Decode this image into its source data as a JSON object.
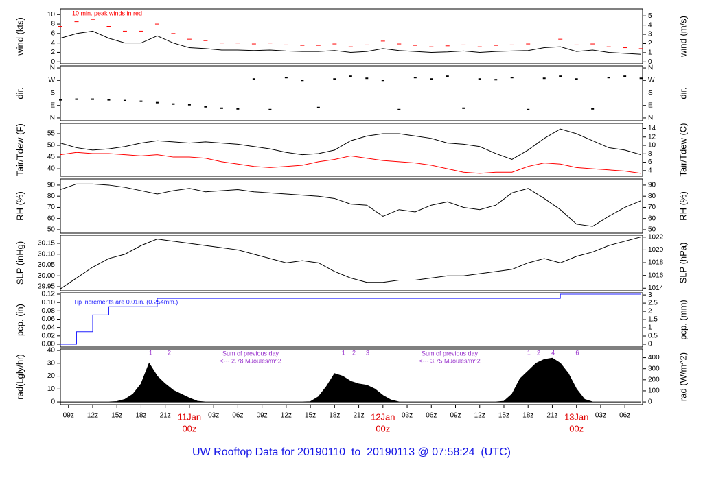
{
  "chart_data": [
    {
      "type": "line",
      "ylabel": "wind (kts)",
      "y2label": "wind (m/s)",
      "annotation": "10 min. peak winds in red",
      "x": [
        8,
        10,
        12,
        14,
        16,
        18,
        20,
        22,
        24,
        26,
        28,
        30,
        32,
        34,
        36,
        38,
        40,
        42,
        44,
        46,
        48,
        50,
        52,
        54,
        56,
        58,
        60,
        62,
        64,
        66,
        68,
        70,
        72,
        74,
        76,
        78,
        80
      ],
      "series": [
        {
          "color": "#000000",
          "values": [
            5,
            6,
            6.5,
            5,
            4,
            4,
            5.5,
            4,
            3,
            2.8,
            2.5,
            2.5,
            2.4,
            2.5,
            2.3,
            2.2,
            2.2,
            2.4,
            2,
            2.2,
            2.8,
            2.4,
            2.2,
            2,
            2.1,
            2.3,
            2,
            2.2,
            2.3,
            2.4,
            3,
            3.2,
            2.2,
            2.5,
            2,
            1.8,
            1.6
          ]
        },
        {
          "color": "#ff0000",
          "marker": "dash",
          "values": [
            7.5,
            8.5,
            9,
            7.5,
            6.5,
            6.5,
            8,
            6,
            4.8,
            4.5,
            4,
            4,
            3.8,
            4,
            3.6,
            3.5,
            3.5,
            3.8,
            3.2,
            3.6,
            4.4,
            3.8,
            3.5,
            3.2,
            3.4,
            3.6,
            3.2,
            3.5,
            3.6,
            3.8,
            4.6,
            4.8,
            3.6,
            3.8,
            3.2,
            3,
            2.8
          ]
        }
      ],
      "xlim": [
        8,
        80.2
      ],
      "ylim": [
        -0.4,
        11.2
      ],
      "yticks": [
        0,
        2,
        4,
        6,
        8,
        10
      ],
      "y2lim": [
        -0.2,
        5.76
      ],
      "y2ticks": [
        0,
        1,
        2,
        3,
        4,
        5
      ]
    },
    {
      "type": "scatter",
      "ylabel": "dir.",
      "y2label": "dir.",
      "x": [
        8,
        10,
        12,
        14,
        16,
        18,
        20,
        22,
        24,
        26,
        28,
        30,
        32,
        34,
        36,
        38,
        40,
        42,
        44,
        46,
        48,
        50,
        52,
        54,
        56,
        58,
        60,
        62,
        64,
        66,
        68,
        70,
        72,
        74,
        76,
        78,
        80
      ],
      "series": [
        {
          "color": "#000000",
          "values": [
            130,
            135,
            135,
            130,
            125,
            120,
            110,
            100,
            95,
            80,
            70,
            65,
            280,
            60,
            290,
            270,
            75,
            280,
            300,
            285,
            270,
            60,
            290,
            280,
            300,
            70,
            280,
            275,
            290,
            60,
            285,
            300,
            280,
            65,
            290,
            300,
            285
          ]
        }
      ],
      "xlim": [
        8,
        80.2
      ],
      "ylim": [
        -20,
        375
      ],
      "yticks": [
        {
          "value": 0,
          "label": "N"
        },
        {
          "value": 90,
          "label": "E"
        },
        {
          "value": 180,
          "label": "S"
        },
        {
          "value": 270,
          "label": "W"
        },
        {
          "value": 360,
          "label": "N"
        }
      ],
      "y2lim": [
        -20,
        375
      ],
      "y2ticks": [
        {
          "value": 0,
          "label": "N"
        },
        {
          "value": 90,
          "label": "E"
        },
        {
          "value": 180,
          "label": "S"
        },
        {
          "value": 270,
          "label": "W"
        },
        {
          "value": 360,
          "label": "N"
        }
      ]
    },
    {
      "type": "line",
      "ylabel": "Tair/Tdew (F)",
      "y2label": "Tair/Tdew (C)",
      "x": [
        8,
        10,
        12,
        14,
        16,
        18,
        20,
        22,
        24,
        26,
        28,
        30,
        32,
        34,
        36,
        38,
        40,
        42,
        44,
        46,
        48,
        50,
        52,
        54,
        56,
        58,
        60,
        62,
        64,
        66,
        68,
        70,
        72,
        74,
        76,
        78,
        80
      ],
      "series": [
        {
          "color": "#000000",
          "values": [
            51,
            49,
            48,
            48.5,
            49.5,
            51,
            52,
            51.5,
            51,
            51.5,
            51,
            50.5,
            49.5,
            48.5,
            47,
            46,
            46.5,
            48,
            52,
            54,
            55,
            55,
            54,
            53,
            51,
            50.5,
            49.5,
            46.5,
            44,
            48,
            53,
            57,
            55,
            52,
            49,
            48,
            46
          ]
        },
        {
          "color": "#ff0000",
          "values": [
            46,
            47,
            46.5,
            46.5,
            46,
            45.5,
            46,
            45,
            45,
            44.5,
            43,
            42,
            41,
            40.5,
            41,
            41.5,
            43,
            44,
            45.5,
            44.5,
            43.5,
            43,
            42.5,
            41.5,
            40,
            38.5,
            38,
            38.5,
            38.5,
            41,
            42.5,
            42,
            40.5,
            40,
            39.5,
            39,
            38
          ]
        }
      ],
      "xlim": [
        8,
        80.2
      ],
      "ylim": [
        36.8,
        59.4
      ],
      "yticks": [
        40,
        45,
        50,
        55
      ],
      "y2lim": [
        2.67,
        15.22
      ],
      "y2ticks": [
        4,
        6,
        8,
        10,
        12,
        14
      ]
    },
    {
      "type": "line",
      "ylabel": "RH (%)",
      "y2label": "RH (%)",
      "x": [
        8,
        10,
        12,
        14,
        16,
        18,
        20,
        22,
        24,
        26,
        28,
        30,
        32,
        34,
        36,
        38,
        40,
        42,
        44,
        46,
        48,
        50,
        52,
        54,
        56,
        58,
        60,
        62,
        64,
        66,
        68,
        70,
        72,
        74,
        76,
        78,
        80
      ],
      "series": [
        {
          "color": "#000000",
          "values": [
            86,
            91,
            91,
            90,
            88,
            85,
            82,
            85,
            87,
            84,
            85,
            86,
            84,
            83,
            82,
            81,
            80,
            78,
            73,
            72,
            62,
            68,
            66,
            72,
            75,
            70,
            68,
            72,
            83,
            87,
            78,
            68,
            55,
            53,
            62,
            70,
            76
          ]
        }
      ],
      "xlim": [
        8,
        80.2
      ],
      "ylim": [
        46.9,
        95.5
      ],
      "yticks": [
        50,
        60,
        70,
        80,
        90
      ],
      "y2lim": [
        46.9,
        95.5
      ],
      "y2ticks": [
        50,
        60,
        70,
        80,
        90
      ]
    },
    {
      "type": "line",
      "ylabel": "SLP (inHg)",
      "y2label": "SLP (hPa)",
      "x": [
        8,
        10,
        12,
        14,
        16,
        18,
        20,
        22,
        24,
        26,
        28,
        30,
        32,
        34,
        36,
        38,
        40,
        42,
        44,
        46,
        48,
        50,
        52,
        54,
        56,
        58,
        60,
        62,
        64,
        66,
        68,
        70,
        72,
        74,
        76,
        78,
        80
      ],
      "series": [
        {
          "color": "#000000",
          "values": [
            29.94,
            29.99,
            30.04,
            30.08,
            30.1,
            30.14,
            30.17,
            30.16,
            30.15,
            30.14,
            30.13,
            30.12,
            30.1,
            30.08,
            30.06,
            30.07,
            30.06,
            30.02,
            29.99,
            29.97,
            29.97,
            29.98,
            29.98,
            29.99,
            30,
            30,
            30.01,
            30.02,
            30.03,
            30.06,
            30.08,
            30.06,
            30.09,
            30.11,
            30.14,
            30.16,
            30.18
          ]
        }
      ],
      "xlim": [
        8,
        80.2
      ],
      "ylim": [
        29.931,
        30.188
      ],
      "yticks": [
        29.95,
        {
          "value": 30,
          "label": "30.00"
        },
        30.05,
        {
          "value": 30.1,
          "label": "30.10"
        },
        30.15
      ],
      "y2lim": [
        1013.6,
        1022.3
      ],
      "y2ticks": [
        1014,
        1016,
        1018,
        1020,
        1022
      ]
    },
    {
      "type": "step",
      "ylabel": "pcp. (in)",
      "y2label": "pcp. (mm)",
      "annotation": "Tip increments are 0.01in. (0.254mm.)",
      "x": [
        8,
        10,
        12,
        14,
        16,
        18,
        20,
        22,
        24,
        26,
        28,
        30,
        32,
        34,
        36,
        38,
        40,
        42,
        44,
        46,
        48,
        50,
        52,
        54,
        56,
        58,
        60,
        62,
        64,
        66,
        68,
        70,
        72,
        74,
        76,
        78,
        80
      ],
      "series": [
        {
          "color": "#2020ff",
          "values": [
            0,
            0.03,
            0.07,
            0.09,
            0.09,
            0.09,
            0.11,
            0.11,
            0.11,
            0.11,
            0.11,
            0.11,
            0.11,
            0.11,
            0.11,
            0.11,
            0.11,
            0.11,
            0.11,
            0.11,
            0.11,
            0.11,
            0.11,
            0.11,
            0.11,
            0.11,
            0.11,
            0.11,
            0.11,
            0.11,
            0.11,
            0.12,
            0.12,
            0.12,
            0.12,
            0.12,
            0.12
          ]
        }
      ],
      "xlim": [
        8,
        80.2
      ],
      "ylim": [
        -0.0066,
        0.1233
      ],
      "yticks": [
        {
          "value": 0,
          "label": "0.00"
        },
        0.02,
        0.04,
        0.06,
        0.08,
        {
          "value": 0.1,
          "label": "0.10"
        },
        0.12
      ],
      "y2lim": [
        -0.167,
        3.13
      ],
      "y2ticks": [
        0,
        0.5,
        1,
        1.5,
        2,
        2.5,
        3
      ]
    },
    {
      "type": "area",
      "ylabel": "rad(Lgly/hr)",
      "y2label": "rad (W/m^2)",
      "notes": [
        "Sum of previous day",
        "<--- 2.78 MJoules/m^2",
        "Sum of previous day",
        "<--- 3.75 MJoules/m^2"
      ],
      "markers": [
        {
          "x": 19.2,
          "label": "1"
        },
        {
          "x": 21.5,
          "label": "2"
        },
        {
          "x": 43.1,
          "label": "1"
        },
        {
          "x": 44.4,
          "label": "2"
        },
        {
          "x": 46.1,
          "label": "3"
        },
        {
          "x": 66.1,
          "label": "1"
        },
        {
          "x": 67.3,
          "label": "2"
        },
        {
          "x": 69.1,
          "label": "4"
        },
        {
          "x": 72.1,
          "label": "6"
        }
      ],
      "x": [
        8,
        9,
        10,
        11,
        12,
        13,
        14,
        15,
        16,
        17,
        18,
        19,
        20,
        21,
        22,
        23,
        24,
        25,
        26,
        27,
        28,
        29,
        30,
        31,
        32,
        33,
        34,
        35,
        36,
        37,
        38,
        39,
        40,
        41,
        42,
        43,
        44,
        45,
        46,
        47,
        48,
        49,
        50,
        51,
        52,
        53,
        54,
        55,
        56,
        57,
        58,
        59,
        60,
        61,
        62,
        63,
        64,
        65,
        66,
        67,
        68,
        69,
        70,
        71,
        72,
        73,
        74,
        75,
        76,
        77,
        78,
        79,
        80
      ],
      "series": [
        {
          "color": "#000000",
          "values": [
            0,
            0,
            0,
            0,
            0,
            0,
            0,
            0.3,
            2,
            6,
            14,
            30,
            20,
            14,
            9,
            6,
            3,
            0.5,
            0,
            0,
            0,
            0,
            0,
            0,
            0,
            0,
            0,
            0,
            0,
            0,
            0,
            0.2,
            4,
            12,
            22,
            20,
            16,
            14,
            13,
            10,
            5,
            1.5,
            0,
            0,
            0,
            0,
            0,
            0,
            0,
            0,
            0,
            0,
            0,
            0,
            0,
            0.5,
            6,
            18,
            24,
            30,
            33,
            34,
            30,
            22,
            10,
            2,
            0,
            0,
            0,
            0,
            0,
            0,
            0
          ]
        }
      ],
      "xlim": [
        8,
        80.2
      ],
      "ylim": [
        -2.1,
        41.1
      ],
      "yticks": [
        0,
        10,
        20,
        30,
        40
      ],
      "y2lim": [
        -24.4,
        478
      ],
      "y2ticks": [
        0,
        100,
        200,
        300,
        400
      ],
      "xticks": [
        {
          "value": 9,
          "label": "09z"
        },
        {
          "value": 12,
          "label": "12z"
        },
        {
          "value": 15,
          "label": "15z"
        },
        {
          "value": 18,
          "label": "18z"
        },
        {
          "value": 21,
          "label": "21z"
        },
        {
          "value": 24,
          "label": "11Jan",
          "hour": "00z"
        },
        {
          "value": 27,
          "label": "03z"
        },
        {
          "value": 30,
          "label": "06z"
        },
        {
          "value": 33,
          "label": "09z"
        },
        {
          "value": 36,
          "label": "12z"
        },
        {
          "value": 39,
          "label": "15z"
        },
        {
          "value": 42,
          "label": "18z"
        },
        {
          "value": 45,
          "label": "21z"
        },
        {
          "value": 48,
          "label": "12Jan",
          "hour": "00z"
        },
        {
          "value": 51,
          "label": "03z"
        },
        {
          "value": 54,
          "label": "06z"
        },
        {
          "value": 57,
          "label": "09z"
        },
        {
          "value": 60,
          "label": "12z"
        },
        {
          "value": 63,
          "label": "15z"
        },
        {
          "value": 66,
          "label": "18z"
        },
        {
          "value": 69,
          "label": "21z"
        },
        {
          "value": 72,
          "label": "13Jan",
          "hour": "00z"
        },
        {
          "value": 75,
          "label": "03z"
        },
        {
          "value": 78,
          "label": "06z"
        }
      ]
    }
  ],
  "footer": {
    "title": "UW Rooftop Data for 20190110  to  20190113 @ 07:58:24  (UTC)"
  }
}
